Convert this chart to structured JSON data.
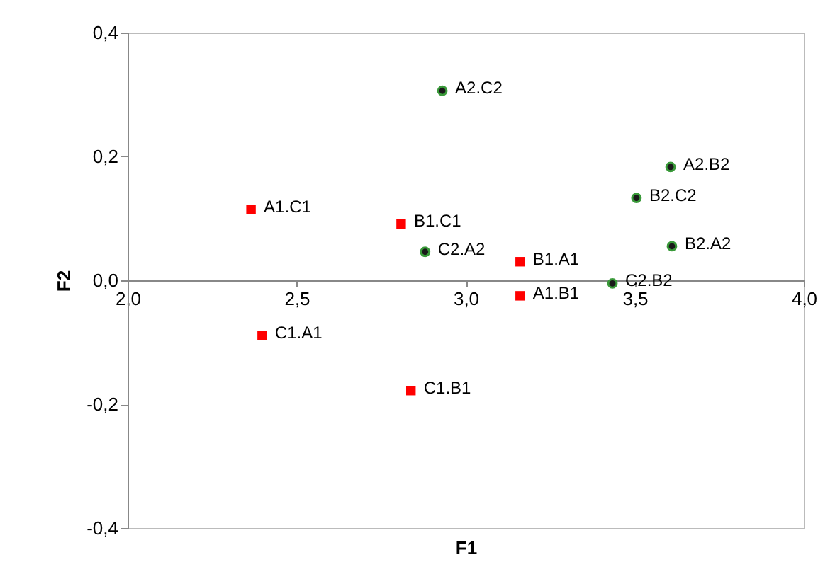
{
  "chart_data": {
    "type": "scatter",
    "xlabel": "F1",
    "ylabel": "F2",
    "xlim": [
      2.0,
      4.0
    ],
    "ylim": [
      -0.4,
      0.4
    ],
    "xticks": [
      {
        "value": 2.0,
        "label": "2,0"
      },
      {
        "value": 2.5,
        "label": "2,5"
      },
      {
        "value": 3.0,
        "label": "3,0"
      },
      {
        "value": 3.5,
        "label": "3,5"
      },
      {
        "value": 4.0,
        "label": "4,0"
      }
    ],
    "yticks": [
      {
        "value": -0.4,
        "label": "-0,4"
      },
      {
        "value": -0.2,
        "label": "-0,2"
      },
      {
        "value": 0.0,
        "label": "0,0"
      },
      {
        "value": 0.2,
        "label": "0,2"
      },
      {
        "value": 0.4,
        "label": "0,4"
      }
    ],
    "grid": false,
    "series": [
      {
        "color": "#ff0000",
        "marker": "square",
        "x": [
          2.365,
          2.809,
          3.161,
          3.161,
          2.398,
          2.838
        ],
        "values": [
          0.114,
          0.091,
          0.03,
          -0.025,
          -0.089,
          -0.178
        ]
      },
      {
        "color": "#1a1a1a",
        "marker": "circle",
        "x": [
          2.931,
          3.606,
          3.505,
          3.61,
          2.88,
          3.434
        ],
        "values": [
          0.306,
          0.183,
          0.133,
          0.055,
          0.046,
          -0.005
        ]
      }
    ],
    "annotations": [
      {
        "text": "A1.C1",
        "x": 2.365,
        "y": 0.114
      },
      {
        "text": "B1.C1",
        "x": 2.809,
        "y": 0.091
      },
      {
        "text": "B1.A1",
        "x": 3.161,
        "y": 0.03
      },
      {
        "text": "A1.B1",
        "x": 3.161,
        "y": -0.025
      },
      {
        "text": "C1.A1",
        "x": 2.398,
        "y": -0.089
      },
      {
        "text": "C1.B1",
        "x": 2.838,
        "y": -0.178
      },
      {
        "text": "A2.C2",
        "x": 2.931,
        "y": 0.306
      },
      {
        "text": "A2.B2",
        "x": 3.606,
        "y": 0.183
      },
      {
        "text": "B2.C2",
        "x": 3.505,
        "y": 0.133
      },
      {
        "text": "B2.A2",
        "x": 3.61,
        "y": 0.055
      },
      {
        "text": "C2.A2",
        "x": 2.88,
        "y": 0.046
      },
      {
        "text": "C2.B2",
        "x": 3.434,
        "y": -0.005
      }
    ]
  }
}
